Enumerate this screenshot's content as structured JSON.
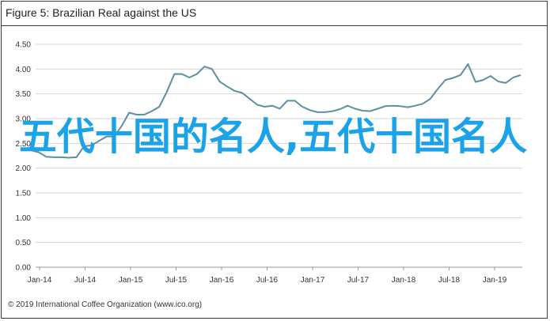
{
  "figure_title": "Figure 5: Brazilian Real against the US",
  "footer": "© 2019 International Coffee Organization (www.ico.org)",
  "overlay_text": "五代十国的名人,五代十国名人",
  "colors": {
    "line": "#5b8fa3",
    "grid": "#d6d6d6",
    "overlay": "#1aa3e8",
    "frame": "#3a3a3a"
  },
  "chart_data": {
    "type": "line",
    "title": "Figure 5: Brazilian Real against the US",
    "xlabel": "",
    "ylabel": "",
    "ylim": [
      0,
      4.5
    ],
    "yticks": [
      "0.00",
      "0.50",
      "1.00",
      "1.50",
      "2.00",
      "2.50",
      "3.00",
      "3.50",
      "4.00",
      "4.50"
    ],
    "xticks": [
      "Jan-14",
      "Jul-14",
      "Jan-15",
      "Jul-15",
      "Jan-16",
      "Jul-16",
      "Jan-17",
      "Jul-17",
      "Jan-18",
      "Jul-18",
      "Jan-19"
    ],
    "grid": true,
    "legend": "none",
    "series": [
      {
        "values": [
          2.38,
          2.36,
          2.32,
          2.23,
          2.22,
          2.22,
          2.21,
          2.22,
          2.44,
          2.46,
          2.55,
          2.64,
          2.64,
          2.85,
          3.12,
          3.08,
          3.08,
          3.15,
          3.24,
          3.54,
          3.9,
          3.9,
          3.83,
          3.9,
          4.05,
          4.0,
          3.75,
          3.65,
          3.56,
          3.52,
          3.4,
          3.28,
          3.24,
          3.26,
          3.2,
          3.36,
          3.36,
          3.24,
          3.17,
          3.13,
          3.13,
          3.15,
          3.19,
          3.26,
          3.2,
          3.16,
          3.15,
          3.2,
          3.25,
          3.26,
          3.25,
          3.23,
          3.26,
          3.3,
          3.4,
          3.6,
          3.78,
          3.82,
          3.88,
          4.1,
          3.74,
          3.78,
          3.86,
          3.75,
          3.72,
          3.83,
          3.88
        ]
      }
    ]
  }
}
